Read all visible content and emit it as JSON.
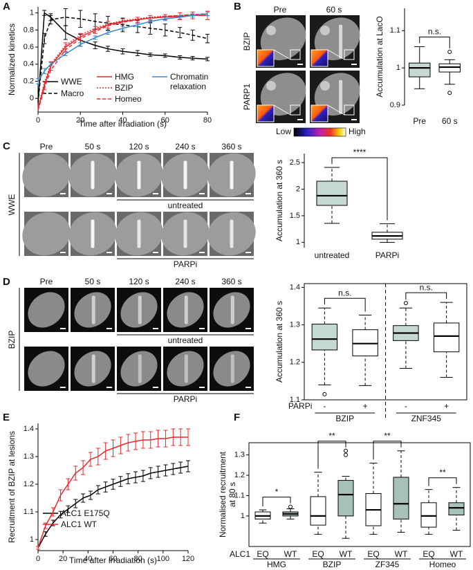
{
  "panel_labels": [
    "A",
    "B",
    "C",
    "D",
    "E",
    "F"
  ],
  "images": {
    "B": {
      "columns": [
        "Pre",
        "60 s"
      ],
      "rows": [
        "BZIP",
        "PARP1"
      ],
      "colorbar": [
        "Low",
        "High"
      ]
    },
    "C": {
      "columns": [
        "Pre",
        "50 s",
        "120 s",
        "240 s",
        "360 s"
      ],
      "conditions": [
        "untreated",
        "PARPi"
      ],
      "construct": "WWE"
    },
    "D": {
      "columns": [
        "Pre",
        "50 s",
        "120 s",
        "240 s",
        "360 s"
      ],
      "conditions": [
        "untreated",
        "PARPi"
      ],
      "construct": "BZIP"
    }
  },
  "chart_data": [
    {
      "type": "line",
      "y_label": "Normalized kinetics",
      "x_label": "Time after irradiation (s)",
      "x": [
        0,
        3,
        6,
        13,
        20,
        27,
        33,
        40,
        47,
        53,
        60,
        67,
        73,
        80
      ],
      "xlim": [
        0,
        80
      ],
      "xticks": [
        0,
        20,
        40,
        60,
        80
      ],
      "ylim": [
        -0.16,
        1.07
      ],
      "yticks": [
        0,
        0.2,
        0.4,
        0.6,
        0.8,
        1
      ],
      "series": [
        {
          "name": "WWE",
          "color": "#000000",
          "dash": "solid",
          "values": [
            -0.05,
            1.0,
            0.95,
            0.77,
            0.68,
            0.62,
            0.58,
            0.55,
            0.53,
            0.51,
            0.5,
            0.48,
            0.47,
            0.46
          ],
          "errors": [
            null,
            0.03,
            0.04,
            0.08,
            0.07,
            0.04,
            0.03,
            0.03,
            0.03,
            0.02,
            0.02,
            0.02,
            0.02,
            0.02
          ]
        },
        {
          "name": "Macro",
          "color": "#000000",
          "dash": "dashed",
          "values": [
            -0.05,
            0.7,
            0.92,
            0.95,
            0.93,
            0.9,
            0.88,
            0.86,
            0.84,
            0.82,
            0.8,
            0.77,
            0.74,
            0.7
          ],
          "errors": [
            null,
            0.06,
            0.05,
            0.1,
            0.1,
            0.09,
            0.08,
            0.08,
            0.07,
            0.07,
            0.07,
            0.06,
            0.06,
            0.05
          ]
        },
        {
          "name": "HMG",
          "color": "#e8262b",
          "dash": "solid",
          "values": [
            -0.12,
            0.15,
            0.38,
            0.6,
            0.72,
            0.8,
            0.86,
            0.9,
            0.92,
            0.94,
            0.95,
            0.96,
            0.97,
            0.97
          ],
          "errors": [
            null,
            0.05,
            0.05,
            0.05,
            0.04,
            0.04,
            0.04,
            0.03,
            0.03,
            0.03,
            0.03,
            0.04,
            0.04,
            0.05
          ]
        },
        {
          "name": "BZIP",
          "color": "#e8262b",
          "dash": "dotted",
          "values": [
            -0.1,
            0.18,
            0.4,
            0.62,
            0.74,
            0.82,
            0.87,
            0.91,
            0.93,
            0.95,
            0.96,
            0.97,
            0.98,
            0.98
          ]
        },
        {
          "name": "Homeo",
          "color": "#e8262b",
          "dash": "dashed",
          "values": [
            -0.14,
            0.12,
            0.33,
            0.57,
            0.7,
            0.78,
            0.85,
            0.89,
            0.92,
            0.94,
            0.96,
            0.97,
            0.98,
            0.99
          ]
        },
        {
          "name": "Chromatin relaxation",
          "color": "#3a86c8",
          "dash": "solid",
          "values": [
            0.2,
            0.32,
            0.4,
            0.52,
            0.63,
            0.71,
            0.77,
            0.82,
            0.86,
            0.9,
            0.93,
            0.95,
            0.97,
            0.99
          ],
          "errors": [
            0.03,
            0.03,
            0.02,
            0.02,
            0.02,
            0.02,
            0.02,
            0.02,
            0.02,
            0.02,
            0.02,
            0.02,
            0.02,
            0.02
          ]
        }
      ]
    },
    {
      "type": "box",
      "y_label": "Accumulation at LacO",
      "categories": [
        "Pre",
        "60 s"
      ],
      "ylim": [
        0.9,
        1.16
      ],
      "yticks": [
        0.9,
        1,
        1.1
      ],
      "box_colors": [
        "#c5d8d3",
        "#ffffff"
      ],
      "dashed_whiskers": false,
      "annotations": [
        "n.s."
      ],
      "boxes": [
        {
          "whislo": 0.944,
          "q1": 0.976,
          "med": 1.0,
          "q3": 1.013,
          "whishi": 1.057,
          "fliers": []
        },
        {
          "whislo": 0.956,
          "q1": 0.989,
          "med": 1.002,
          "q3": 1.011,
          "whishi": 1.022,
          "fliers": [
            1.043,
            0.933
          ]
        }
      ]
    },
    {
      "type": "box",
      "y_label": "Accumulation at 360 s",
      "categories": [
        "untreated",
        "PARPi"
      ],
      "ylim": [
        0.9,
        2.67
      ],
      "yticks": [
        1,
        1.5,
        2,
        2.5
      ],
      "box_colors": [
        "#c5d8d3",
        "#ffffff"
      ],
      "dashed_whiskers": true,
      "annotations": [
        "****"
      ],
      "boxes": [
        {
          "whislo": 1.357,
          "q1": 1.695,
          "med": 1.877,
          "q3": 2.15,
          "whishi": 2.41,
          "fliers": []
        },
        {
          "whislo": 1.0,
          "q1": 1.06,
          "med": 1.12,
          "q3": 1.19,
          "whishi": 1.35,
          "fliers": []
        }
      ]
    },
    {
      "type": "box",
      "y_label": "Accumulation at 360 s",
      "categories": [
        "-",
        "+",
        "-",
        "+"
      ],
      "x_row_label": "PARPi",
      "groups": [
        "BZIP",
        "ZNF345"
      ],
      "ylim": [
        1.1,
        1.41
      ],
      "yticks": [
        1.1,
        1.2,
        1.3,
        1.4
      ],
      "box_colors": [
        "#c5d8d3",
        "#ffffff"
      ],
      "dashed_whiskers": true,
      "annotations": [
        "n.s.",
        "n.s."
      ],
      "boxes": [
        {
          "whislo": 1.14,
          "q1": 1.233,
          "med": 1.262,
          "q3": 1.302,
          "whishi": 1.345,
          "fliers": [
            1.115
          ]
        },
        {
          "whislo": 1.138,
          "q1": 1.217,
          "med": 1.25,
          "q3": 1.287,
          "whishi": 1.326,
          "fliers": []
        },
        {
          "whislo": 1.184,
          "q1": 1.258,
          "med": 1.278,
          "q3": 1.298,
          "whishi": 1.345,
          "fliers": [
            1.358
          ]
        },
        {
          "whislo": 1.16,
          "q1": 1.228,
          "med": 1.27,
          "q3": 1.305,
          "whishi": 1.36,
          "fliers": []
        }
      ]
    },
    {
      "type": "line",
      "y_label": "Recruitment of BZIP at lesions",
      "x_label": "Time after irradiation (s)",
      "x": [
        0,
        6,
        12,
        18,
        24,
        30,
        36,
        42,
        48,
        54,
        60,
        66,
        72,
        78,
        84,
        90,
        96,
        102,
        108,
        114,
        120
      ],
      "xlim": [
        0,
        120
      ],
      "xticks": [
        0,
        20,
        40,
        60,
        80,
        100,
        120
      ],
      "ylim": [
        0.96,
        1.42
      ],
      "yticks": [
        1,
        1.1,
        1.2,
        1.3,
        1.4
      ],
      "series": [
        {
          "name": "ALC1 E175Q",
          "color": "#000000",
          "dash": "solid",
          "values": [
            0.97,
            1.02,
            1.06,
            1.09,
            1.11,
            1.13,
            1.15,
            1.16,
            1.18,
            1.19,
            1.2,
            1.21,
            1.22,
            1.225,
            1.23,
            1.24,
            1.245,
            1.25,
            1.255,
            1.26,
            1.265
          ],
          "errors": [
            0.005,
            0.008,
            0.01,
            0.012,
            0.012,
            0.015,
            0.015,
            0.015,
            0.015,
            0.018,
            0.018,
            0.018,
            0.018,
            0.02,
            0.02,
            0.02,
            0.02,
            0.02,
            0.02,
            0.02,
            0.02
          ]
        },
        {
          "name": "ALC1 WT",
          "color": "#e8262b",
          "dash": "solid",
          "values": [
            0.97,
            1.05,
            1.1,
            1.16,
            1.2,
            1.24,
            1.26,
            1.29,
            1.3,
            1.32,
            1.33,
            1.34,
            1.35,
            1.355,
            1.36,
            1.36,
            1.365,
            1.365,
            1.37,
            1.37,
            1.37
          ],
          "errors": [
            0.005,
            0.01,
            0.015,
            0.02,
            0.02,
            0.025,
            0.025,
            0.025,
            0.03,
            0.03,
            0.03,
            0.03,
            0.03,
            0.03,
            0.03,
            0.03,
            0.03,
            0.03,
            0.03,
            0.03,
            0.03
          ]
        }
      ]
    },
    {
      "type": "box",
      "y_label": [
        "Normalised recruitment",
        "at 80 s"
      ],
      "categories": [
        "EQ",
        "WT",
        "EQ",
        "WT",
        "EQ",
        "WT",
        "EQ",
        "WT"
      ],
      "x_row_label": "ALC1",
      "groups": [
        "HMG",
        "BZIP",
        "ZF345",
        "Homeo"
      ],
      "ylim": [
        0.85,
        1.36
      ],
      "yticks": [
        1,
        1.1,
        1.2,
        1.3
      ],
      "box_colors": [
        "#ffffff",
        "#a9c1bb"
      ],
      "dashed_whiskers": true,
      "annotations": [
        "*",
        "**",
        "**",
        "**"
      ],
      "boxes": [
        {
          "whislo": 0.965,
          "q1": 0.985,
          "med": 1.0,
          "q3": 1.02,
          "whishi": 1.03,
          "fliers": []
        },
        {
          "whislo": 0.985,
          "q1": 1.0,
          "med": 1.01,
          "q3": 1.02,
          "whishi": 1.035,
          "fliers": [
            1.045
          ]
        },
        {
          "whislo": 0.91,
          "q1": 0.955,
          "med": 1.0,
          "q3": 1.095,
          "whishi": 1.215,
          "fliers": []
        },
        {
          "whislo": 0.89,
          "q1": 1.0,
          "med": 1.105,
          "q3": 1.175,
          "whishi": 1.195,
          "fliers": [
            1.32,
            1.3
          ]
        },
        {
          "whislo": 0.91,
          "q1": 0.952,
          "med": 1.03,
          "q3": 1.11,
          "whishi": 1.26,
          "fliers": []
        },
        {
          "whislo": 0.92,
          "q1": 0.985,
          "med": 1.06,
          "q3": 1.19,
          "whishi": 1.32,
          "fliers": []
        },
        {
          "whislo": 0.91,
          "q1": 0.945,
          "med": 1.0,
          "q3": 1.065,
          "whishi": 1.13,
          "fliers": []
        },
        {
          "whislo": 0.93,
          "q1": 1.005,
          "med": 1.04,
          "q3": 1.065,
          "whishi": 1.14,
          "fliers": []
        }
      ]
    }
  ]
}
